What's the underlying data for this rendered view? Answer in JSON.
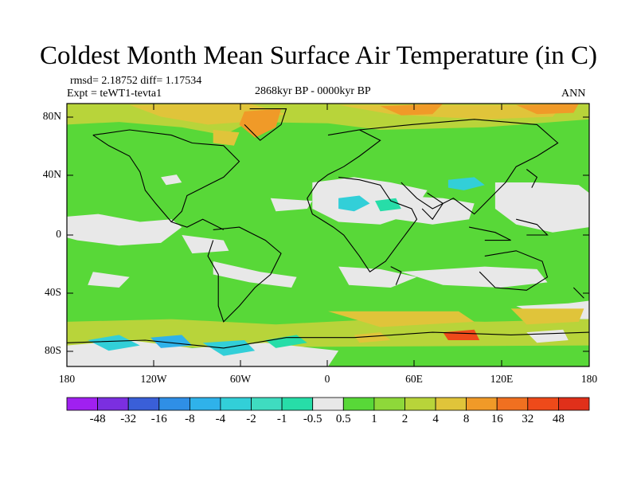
{
  "title": "Coldest Month Mean Surface Air Temperature (in C)",
  "stats": {
    "line1": "rmsd= 2.18752  diff= 1.17534",
    "line2": "Expt = teWT1-tevta1"
  },
  "period": "2868kyr BP - 0000kyr BP",
  "season": "ANN",
  "axes": {
    "lat_ticks": [
      "80N",
      "40N",
      "0",
      "40S",
      "80S"
    ],
    "lon_ticks": [
      "180",
      "120W",
      "60W",
      "0",
      "60E",
      "120E",
      "180"
    ]
  },
  "colorbar": {
    "labels": [
      "-48",
      "-32",
      "-16",
      "-8",
      "-4",
      "-2",
      "-1",
      "-0.5",
      "0.5",
      "1",
      "2",
      "4",
      "8",
      "16",
      "32",
      "48"
    ],
    "colors": [
      "#a020f0",
      "#7b2fe0",
      "#3a5fd8",
      "#2f8fe6",
      "#2fb2ea",
      "#32cfd8",
      "#3fdcc0",
      "#27dda8",
      "#e8e8e8",
      "#58d838",
      "#8ed83a",
      "#b8d43a",
      "#e0c43a",
      "#f09a28",
      "#f07020",
      "#ee4a1a",
      "#e0301a"
    ]
  },
  "palette": {
    "green": "#58d838",
    "light_green": "#8ed83a",
    "yellow_green": "#b8d43a",
    "gray": "#e8e8e8",
    "yellow": "#e0c43a",
    "orange": "#f09a28",
    "red_orange": "#ee4a1a",
    "cyan": "#32cfd8",
    "teal": "#27dda8",
    "blue": "#2fb2ea",
    "deep_blue": "#2f8fe6"
  }
}
